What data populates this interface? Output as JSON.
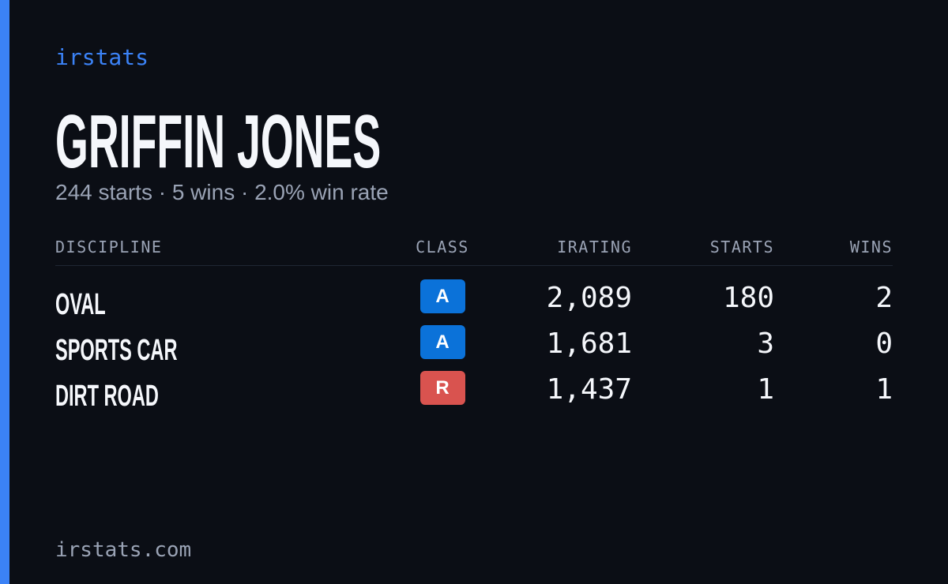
{
  "brand": "irstats",
  "header": {
    "name": "GRIFFIN JONES",
    "summary": "244 starts · 5 wins · 2.0% win rate"
  },
  "table": {
    "columns": [
      "DISCIPLINE",
      "CLASS",
      "IRATING",
      "STARTS",
      "WINS"
    ],
    "rows": [
      {
        "discipline": "OVAL",
        "class": "A",
        "class_color": "#0b72d9",
        "irating": "2,089",
        "starts": "180",
        "wins": "2"
      },
      {
        "discipline": "SPORTS CAR",
        "class": "A",
        "class_color": "#0b72d9",
        "irating": "1,681",
        "starts": "3",
        "wins": "0"
      },
      {
        "discipline": "DIRT ROAD",
        "class": "R",
        "class_color": "#d9534f",
        "irating": "1,437",
        "starts": "1",
        "wins": "1"
      }
    ]
  },
  "footer": "irstats.com"
}
